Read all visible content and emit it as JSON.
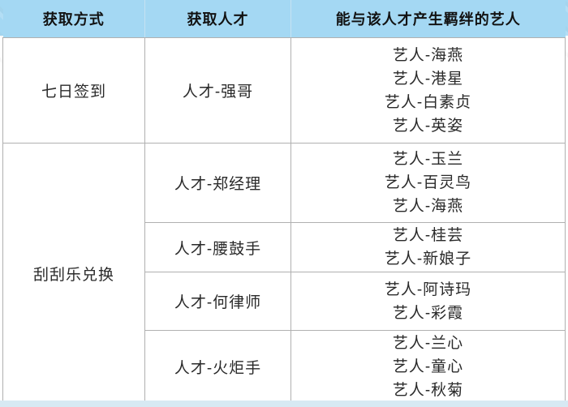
{
  "table": {
    "headers": [
      "获取方式",
      "获取人才",
      "能与该人才产生羁绊的艺人"
    ],
    "groups": [
      {
        "method": "七日签到",
        "rows": [
          {
            "talent": "人才-强哥",
            "artists": [
              "艺人-海燕",
              "艺人-港星",
              "艺人-白素贞",
              "艺人-英姿"
            ]
          }
        ]
      },
      {
        "method": "刮刮乐兑换",
        "rows": [
          {
            "talent": "人才-郑经理",
            "artists": [
              "艺人-玉兰",
              "艺人-百灵鸟",
              "艺人-海燕"
            ]
          },
          {
            "talent": "人才-腰鼓手",
            "artists": [
              "艺人-桂芸",
              "艺人-新娘子"
            ]
          },
          {
            "talent": "人才-何律师",
            "artists": [
              "艺人-阿诗玛",
              "艺人-彩霞"
            ]
          },
          {
            "talent": "人才-火炬手",
            "artists": [
              "艺人-兰心",
              "艺人-童心",
              "艺人-秋菊"
            ]
          }
        ]
      }
    ]
  },
  "colors": {
    "header_bg": "#a4d8f3",
    "footer_band": "#d7e9f3",
    "border": "#b0b0b0",
    "header_text": "#121212",
    "body_text": "#2a2a2a"
  }
}
